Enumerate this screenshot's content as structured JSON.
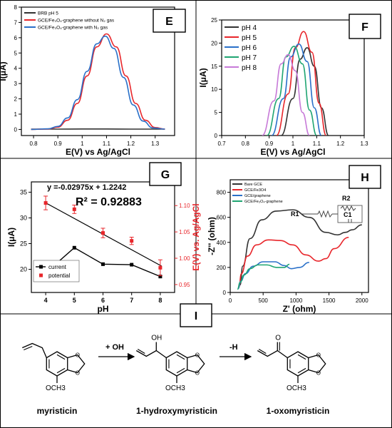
{
  "chart_data": [
    {
      "panel": "E",
      "type": "line",
      "xlabel": "E(V) vs Ag/AgCl",
      "ylabel": "I(μA)",
      "xlim": [
        0.75,
        1.38
      ],
      "ylim": [
        -0.4,
        8
      ],
      "xticks": [
        0.8,
        0.9,
        1.0,
        1.1,
        1.2,
        1.3
      ],
      "yticks": [
        0,
        1,
        2,
        3,
        4,
        5,
        6,
        7,
        8
      ],
      "legend": "top-left",
      "series": [
        {
          "name": "BRB pH 5",
          "color": "#333333",
          "x": [
            0.79,
            0.9,
            1.0,
            1.1,
            1.2,
            1.34
          ],
          "y": [
            0.02,
            0.02,
            0.03,
            0.03,
            0.02,
            0.02
          ]
        },
        {
          "name": "GCE/Fe₃O₄-graphene without N₂ gas",
          "color": "#e8262b",
          "x": [
            0.79,
            0.86,
            0.9,
            0.94,
            0.98,
            1.02,
            1.06,
            1.1,
            1.14,
            1.18,
            1.22,
            1.26,
            1.3,
            1.34
          ],
          "y": [
            0.0,
            0.03,
            0.15,
            0.6,
            1.7,
            3.5,
            5.4,
            6.25,
            5.4,
            3.5,
            1.7,
            0.6,
            0.12,
            0.02
          ]
        },
        {
          "name": "GCE/Fe₃O₄-graphene with N₂ gas",
          "color": "#2a70c9",
          "x": [
            0.79,
            0.86,
            0.9,
            0.94,
            0.98,
            1.02,
            1.06,
            1.095,
            1.13,
            1.17,
            1.21,
            1.25,
            1.29,
            1.34
          ],
          "y": [
            0.0,
            0.04,
            0.2,
            0.75,
            1.95,
            3.8,
            5.6,
            6.1,
            5.3,
            3.4,
            1.6,
            0.55,
            0.1,
            0.02
          ]
        }
      ]
    },
    {
      "panel": "F",
      "type": "line",
      "xlabel": "E(V) vs Ag/AgCl",
      "ylabel": "I(μA)",
      "xlim": [
        0.7,
        1.3
      ],
      "ylim": [
        0,
        25
      ],
      "xticks": [
        0.7,
        0.8,
        0.9,
        1.0,
        1.1,
        1.2,
        1.3
      ],
      "yticks": [
        0,
        5,
        10,
        15,
        20,
        25
      ],
      "legend": "top-left",
      "series": [
        {
          "name": "pH 4",
          "color": "#333333",
          "x": [
            0.95,
            1.0,
            1.03,
            1.06,
            1.09,
            1.12,
            1.15
          ],
          "y": [
            0,
            8,
            16.5,
            19,
            15,
            6,
            0
          ]
        },
        {
          "name": "pH 5",
          "color": "#e8262b",
          "x": [
            0.93,
            0.98,
            1.01,
            1.045,
            1.08,
            1.11,
            1.14
          ],
          "y": [
            0,
            9,
            19,
            22.5,
            18,
            7,
            0
          ]
        },
        {
          "name": "pH 6",
          "color": "#2a70c9",
          "x": [
            0.91,
            0.96,
            0.99,
            1.025,
            1.06,
            1.09,
            1.12
          ],
          "y": [
            0,
            8,
            17,
            19.8,
            16,
            6,
            0
          ]
        },
        {
          "name": "pH 7",
          "color": "#1fa572",
          "x": [
            0.89,
            0.94,
            0.97,
            1.005,
            1.04,
            1.07,
            1.1
          ],
          "y": [
            0,
            8,
            17,
            19.3,
            15.5,
            5.5,
            0
          ]
        },
        {
          "name": "pH 8",
          "color": "#c77ad8",
          "x": [
            0.87,
            0.92,
            0.95,
            0.98,
            1.01,
            1.04,
            1.07
          ],
          "y": [
            0,
            7.5,
            15.5,
            17.5,
            14,
            5,
            0
          ]
        }
      ]
    },
    {
      "panel": "G",
      "type": "line",
      "xlabel": "pH",
      "ylabel": "I(μA)",
      "ylabel_right": "E(V) vs. Ag/AgCl",
      "xticks": [
        4,
        5,
        6,
        7,
        8
      ],
      "yticks": [
        20,
        25,
        30,
        35
      ],
      "yticks_right": [
        "0.95",
        "1.00",
        "1.05",
        "1.10"
      ],
      "xlim": [
        3.5,
        8.5
      ],
      "ylim": [
        15.5,
        37
      ],
      "ylim_right": [
        0.935,
        1.145
      ],
      "equation": "y =-0.02975x + 1.2242",
      "r2": "R² = 0.92883",
      "legend": "bottom-left",
      "series": [
        {
          "name": "current",
          "color": "#000000",
          "x": [
            4,
            5,
            6,
            7,
            8
          ],
          "y": [
            19.3,
            24.2,
            21.0,
            20.9,
            18.6
          ]
        },
        {
          "name": "potential",
          "color": "#e8262b",
          "axis": "right",
          "x": [
            4,
            5,
            6,
            7,
            8
          ],
          "y": [
            1.105,
            1.093,
            1.048,
            1.033,
            0.982
          ],
          "err": [
            0.013,
            0.008,
            0.009,
            0.007,
            0.015
          ]
        }
      ],
      "fit_line": {
        "x": [
          4,
          8.05
        ],
        "y": [
          1.1052,
          0.985
        ]
      }
    },
    {
      "panel": "H",
      "type": "line",
      "xlabel": "Z' (ohm)",
      "ylabel": "-Z'' (ohm)",
      "xlim": [
        0,
        2100
      ],
      "ylim": [
        0,
        900
      ],
      "xticks": [
        0,
        500,
        1000,
        1500,
        2000
      ],
      "yticks": [
        0,
        200,
        400,
        600,
        800
      ],
      "legend": "top-left",
      "circuit": {
        "r1": "R1",
        "r2": "R2",
        "c1": "C1"
      },
      "series": [
        {
          "name": "Bare GCE",
          "color": "#333333",
          "x": [
            150,
            190,
            300,
            480,
            700,
            950,
            1200,
            1450,
            1630,
            1750,
            1850,
            2000
          ],
          "y": [
            60,
            210,
            430,
            580,
            650,
            660,
            600,
            480,
            460,
            480,
            500,
            540
          ]
        },
        {
          "name": "GCE/Fe3O4",
          "color": "#e8262b",
          "x": [
            130,
            170,
            260,
            400,
            580,
            760,
            950,
            1150,
            1340,
            1450,
            1580,
            1800
          ],
          "y": [
            40,
            150,
            290,
            380,
            420,
            415,
            380,
            300,
            250,
            270,
            350,
            440
          ]
        },
        {
          "name": "GCE/graphene",
          "color": "#2a70c9",
          "x": [
            120,
            160,
            230,
            350,
            500,
            680,
            820,
            930,
            1050,
            1200
          ],
          "y": [
            30,
            90,
            150,
            210,
            245,
            245,
            215,
            190,
            200,
            240
          ]
        },
        {
          "name": "GCE/Fe₃O₄-graphene",
          "color": "#1fa572",
          "x": [
            110,
            150,
            210,
            300,
            420,
            560,
            700,
            820,
            900
          ],
          "y": [
            25,
            80,
            140,
            190,
            220,
            220,
            200,
            200,
            225
          ]
        }
      ]
    }
  ],
  "panel_labels": {
    "e": "E",
    "f": "F",
    "g": "G",
    "h": "H",
    "i": "I"
  },
  "scheme": {
    "arrow1_label": "+ OH",
    "arrow2_label": "-H",
    "compound1_name": "myristicin",
    "compound2_name": "1-hydroxymyristicin",
    "compound3_name": "1-oxomyristicin",
    "compound1_group": "OCH3",
    "compound2_group": "OCH3",
    "compound3_group": "OCH3",
    "oh_label": "OH",
    "o_label": "O",
    "ring_o_label": "O"
  }
}
